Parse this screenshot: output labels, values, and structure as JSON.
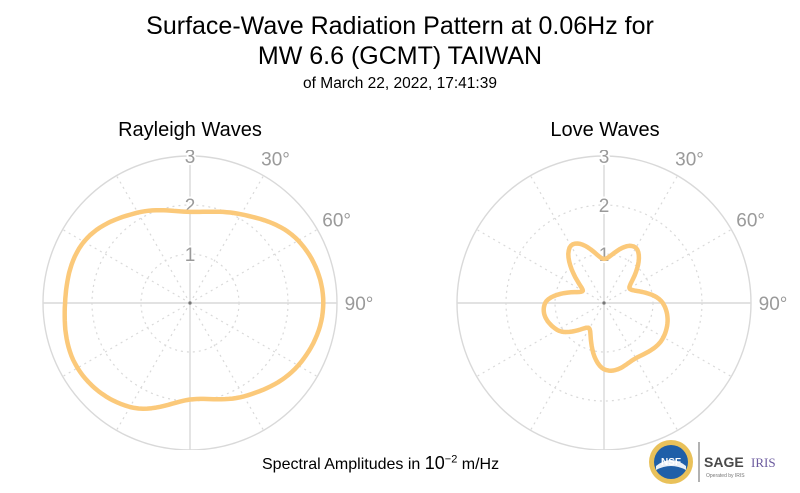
{
  "title_line1": "Surface-Wave Radiation Pattern at 0.06Hz for",
  "title_line2": "MW 6.6 (GCMT) TAIWAN",
  "subtitle": "of March 22, 2022, 17:41:39",
  "footer": {
    "prefix": "Spectral Amplitudes in ",
    "base": "10",
    "exponent": "−2",
    "unit": " m/Hz"
  },
  "logos": {
    "nsf": "NSF",
    "sage": "SAGE",
    "iris": "IRIS",
    "operated_by": "Operated by IRIS"
  },
  "colors": {
    "curve": "#fbc97a",
    "grid": "#d9d9d9",
    "tick_text": "#9a9a9a"
  },
  "chart_data": [
    {
      "type": "polar-line",
      "title": "Rayleigh Waves",
      "r_ticks": [
        "1",
        "2",
        "3"
      ],
      "r_max": 3,
      "angle_ticks": [
        "30°",
        "60°",
        "90°"
      ],
      "theta_deg": [
        0,
        30,
        60,
        90,
        120,
        150,
        180,
        210,
        240,
        270,
        300,
        330,
        360
      ],
      "r": [
        1.86,
        2.09,
        2.55,
        2.72,
        2.55,
        2.2,
        1.97,
        2.45,
        2.65,
        2.55,
        2.5,
        2.13,
        1.86
      ]
    },
    {
      "type": "polar-line",
      "title": "Love Waves",
      "r_ticks": [
        "1",
        "2",
        "3"
      ],
      "r_max": 3,
      "angle_ticks": [
        "30°",
        "60°",
        "90°"
      ],
      "theta_deg": [
        0,
        30,
        60,
        90,
        120,
        150,
        180,
        210,
        240,
        270,
        300,
        330,
        360
      ],
      "r": [
        0.9,
        1.3,
        0.6,
        1.2,
        1.4,
        1.3,
        1.35,
        0.6,
        1.1,
        1.2,
        0.5,
        1.35,
        0.9
      ]
    }
  ]
}
